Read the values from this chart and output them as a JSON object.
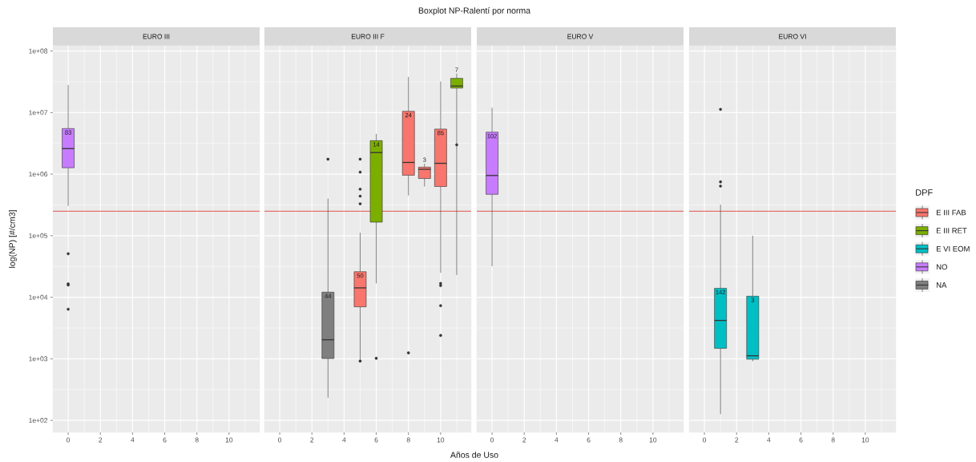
{
  "chart_data": [
    {
      "type": "box",
      "subtitle": "EURO III",
      "ylabel": "log(NP) [#/cm3]",
      "xlim": [
        -0.95,
        11.9
      ],
      "ylim": [
        64,
        122000000
      ],
      "xticks": [
        0,
        2,
        4,
        6,
        8,
        10
      ],
      "yticks": [
        {
          "value": 100,
          "label": "1e+02"
        },
        {
          "value": 1000,
          "label": "1e+03"
        },
        {
          "value": 10000,
          "label": "1e+04"
        },
        {
          "value": 100000,
          "label": "1e+05"
        },
        {
          "value": 1000000,
          "label": "1e+06"
        },
        {
          "value": 10000000,
          "label": "1e+07"
        },
        {
          "value": 100000000,
          "label": "1e+08"
        }
      ],
      "log": true,
      "grid": true,
      "ref_lines": [
        {
          "axis": "y",
          "value": 250000,
          "color": "#e0443e"
        }
      ],
      "series": [
        {
          "color": "#c77cff",
          "x": [
            0
          ],
          "boxes": [
            {
              "low": 305000,
              "q1": 1270000,
              "median": 2600000,
              "q3": 5500000,
              "high": 28000000,
              "outliers": [
                51000,
                16500,
                15800,
                6400
              ]
            }
          ]
        }
      ],
      "annotations": [
        "83"
      ]
    },
    {
      "type": "box",
      "subtitle": "EURO III F",
      "xlim": [
        -0.95,
        11.9
      ],
      "ylim": [
        64,
        122000000
      ],
      "xticks": [
        0,
        2,
        4,
        6,
        8,
        10
      ],
      "yticks": [
        {
          "value": 100,
          "label": null
        },
        {
          "value": 1000,
          "label": null
        },
        {
          "value": 10000,
          "label": null
        },
        {
          "value": 100000,
          "label": null
        },
        {
          "value": 1000000,
          "label": null
        },
        {
          "value": 10000000,
          "label": null
        },
        {
          "value": 100000000,
          "label": null
        }
      ],
      "log": true,
      "grid": true,
      "tick_labels": "x",
      "ref_lines": [
        {
          "axis": "y",
          "value": 250000,
          "color": "#e0443e"
        }
      ],
      "series": [
        {
          "color": "#f8766d",
          "x": [
            5,
            8,
            9,
            10
          ],
          "boxes": [
            {
              "low": 960,
              "q1": 7000,
              "median": 14200,
              "q3": 26000,
              "high": 112000,
              "outliers": [
                1750000,
                1080000,
                570000,
                440000,
                330000,
                920
              ]
            },
            {
              "low": 450000,
              "q1": 960000,
              "median": 1550000,
              "q3": 10500000,
              "high": 38000000,
              "outliers": [
                1250
              ]
            },
            {
              "low": 630000,
              "q1": 850000,
              "median": 1200000,
              "q3": 1300000,
              "high": 1480000
            },
            {
              "low": 25000,
              "q1": 630000,
              "median": 1500000,
              "q3": 5400000,
              "high": 32000000,
              "outliers": [
                16800,
                15500,
                7300,
                2400
              ]
            }
          ]
        },
        {
          "color": "#7cae00",
          "x": [
            6,
            11
          ],
          "boxes": [
            {
              "low": 16800,
              "q1": 166000,
              "median": 2240000,
              "q3": 3500000,
              "high": 4500000,
              "outliers": [
                1020
              ]
            },
            {
              "low": 23000,
              "q1": 25000000,
              "median": 27000000,
              "q3": 36000000,
              "high": 43000000,
              "outliers": [
                3000000
              ]
            }
          ]
        },
        {
          "color": "#7f7f7f",
          "x": [
            3
          ],
          "boxes": [
            {
              "low": 234,
              "q1": 1010,
              "median": 2040,
              "q3": 12100,
              "high": 400000,
              "outliers": [
                1750000
              ]
            }
          ]
        }
      ],
      "annotations": [
        "50",
        "24",
        "3",
        "85",
        "14",
        "7",
        "44"
      ]
    },
    {
      "type": "box",
      "subtitle": "EURO V",
      "xlim": [
        -0.95,
        11.9
      ],
      "ylim": [
        64,
        122000000
      ],
      "xticks": [
        0,
        2,
        4,
        6,
        8,
        10
      ],
      "yticks": [
        {
          "value": 100,
          "label": null
        },
        {
          "value": 1000,
          "label": null
        },
        {
          "value": 10000,
          "label": null
        },
        {
          "value": 100000,
          "label": null
        },
        {
          "value": 1000000,
          "label": null
        },
        {
          "value": 10000000,
          "label": null
        },
        {
          "value": 100000000,
          "label": null
        }
      ],
      "log": true,
      "grid": true,
      "tick_labels": "x",
      "ref_lines": [
        {
          "axis": "y",
          "value": 250000,
          "color": "#e0443e"
        }
      ],
      "series": [
        {
          "color": "#c77cff",
          "x": [
            0
          ],
          "boxes": [
            {
              "low": 32000,
              "q1": 470000,
              "median": 950000,
              "q3": 4800000,
              "high": 12000000
            }
          ]
        }
      ],
      "annotations": [
        "102"
      ]
    },
    {
      "type": "box",
      "subtitle": "EURO VI",
      "xlim": [
        -0.95,
        11.9
      ],
      "ylim": [
        64,
        122000000
      ],
      "xticks": [
        0,
        2,
        4,
        6,
        8,
        10
      ],
      "yticks": [
        {
          "value": 100,
          "label": null
        },
        {
          "value": 1000,
          "label": null
        },
        {
          "value": 10000,
          "label": null
        },
        {
          "value": 100000,
          "label": null
        },
        {
          "value": 1000000,
          "label": null
        },
        {
          "value": 10000000,
          "label": null
        },
        {
          "value": 100000000,
          "label": null
        }
      ],
      "log": true,
      "grid": true,
      "tick_labels": "x",
      "legend": "right",
      "legend_title": "DPF",
      "ref_lines": [
        {
          "axis": "y",
          "value": 250000,
          "color": "#e0443e"
        }
      ],
      "series": [
        {
          "name": "E III FAB",
          "color": "#f8766d"
        },
        {
          "name": "E III RET",
          "color": "#7cae00"
        },
        {
          "name": "E VI EOM",
          "color": "#00bfc4",
          "x": [
            1,
            3
          ],
          "boxes": [
            {
              "low": 126,
              "q1": 1480,
              "median": 4200,
              "q3": 14000,
              "high": 320000,
              "outliers": [
                11300000,
                750000,
                640000
              ]
            },
            {
              "low": 910,
              "q1": 985,
              "median": 1120,
              "q3": 10400,
              "high": 100000
            }
          ]
        },
        {
          "name": "NO",
          "color": "#c77cff"
        },
        {
          "name": "NA",
          "color": "#7f7f7f"
        }
      ],
      "annotations": [
        "142",
        "3"
      ]
    },
    {
      "type": "other",
      "title": "Boxplot NP-Ralentí por norma",
      "xlabel": "Años de Uso"
    }
  ]
}
